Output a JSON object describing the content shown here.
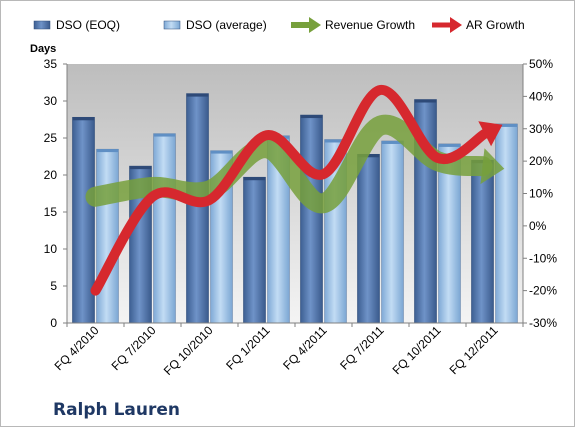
{
  "company": "Ralph Lauren",
  "chart_data": {
    "type": "bar",
    "ylabel": "Days",
    "ylim": [
      0,
      35
    ],
    "y2lim": [
      -30,
      50
    ],
    "y_ticks": [
      "0",
      "5",
      "10",
      "15",
      "20",
      "25",
      "30",
      "35"
    ],
    "y2_ticks": [
      "-30%",
      "-20%",
      "-10%",
      "0%",
      "10%",
      "20%",
      "30%",
      "40%",
      "50%"
    ],
    "categories": [
      "FQ 4/2010",
      "FQ 7/2010",
      "FQ 10/2010",
      "FQ 1/2011",
      "FQ 4/2011",
      "FQ 7/2011",
      "FQ 10/2011",
      "FQ 12/2011"
    ],
    "legend_position": "top",
    "grid": false,
    "series": [
      {
        "name": "DSO (EOQ)",
        "kind": "bar",
        "axis": "left",
        "color": "#4a6fa5",
        "values": [
          27.8,
          21.2,
          31.0,
          19.7,
          28.1,
          22.8,
          30.2,
          22.0
        ]
      },
      {
        "name": "DSO (average)",
        "kind": "bar",
        "axis": "left",
        "color": "#9ec3e6",
        "values": [
          23.5,
          25.6,
          23.3,
          25.3,
          24.8,
          24.6,
          24.2,
          26.9
        ]
      },
      {
        "name": "Revenue Growth",
        "kind": "arrow-line",
        "axis": "right",
        "color": "#77a03c",
        "values": [
          9,
          12,
          11,
          24,
          7,
          31,
          20,
          18
        ]
      },
      {
        "name": "AR Growth",
        "kind": "arrow-line",
        "axis": "right",
        "color": "#d6282e",
        "values": [
          -20,
          9,
          8,
          28,
          16,
          42,
          21,
          30
        ]
      }
    ]
  }
}
